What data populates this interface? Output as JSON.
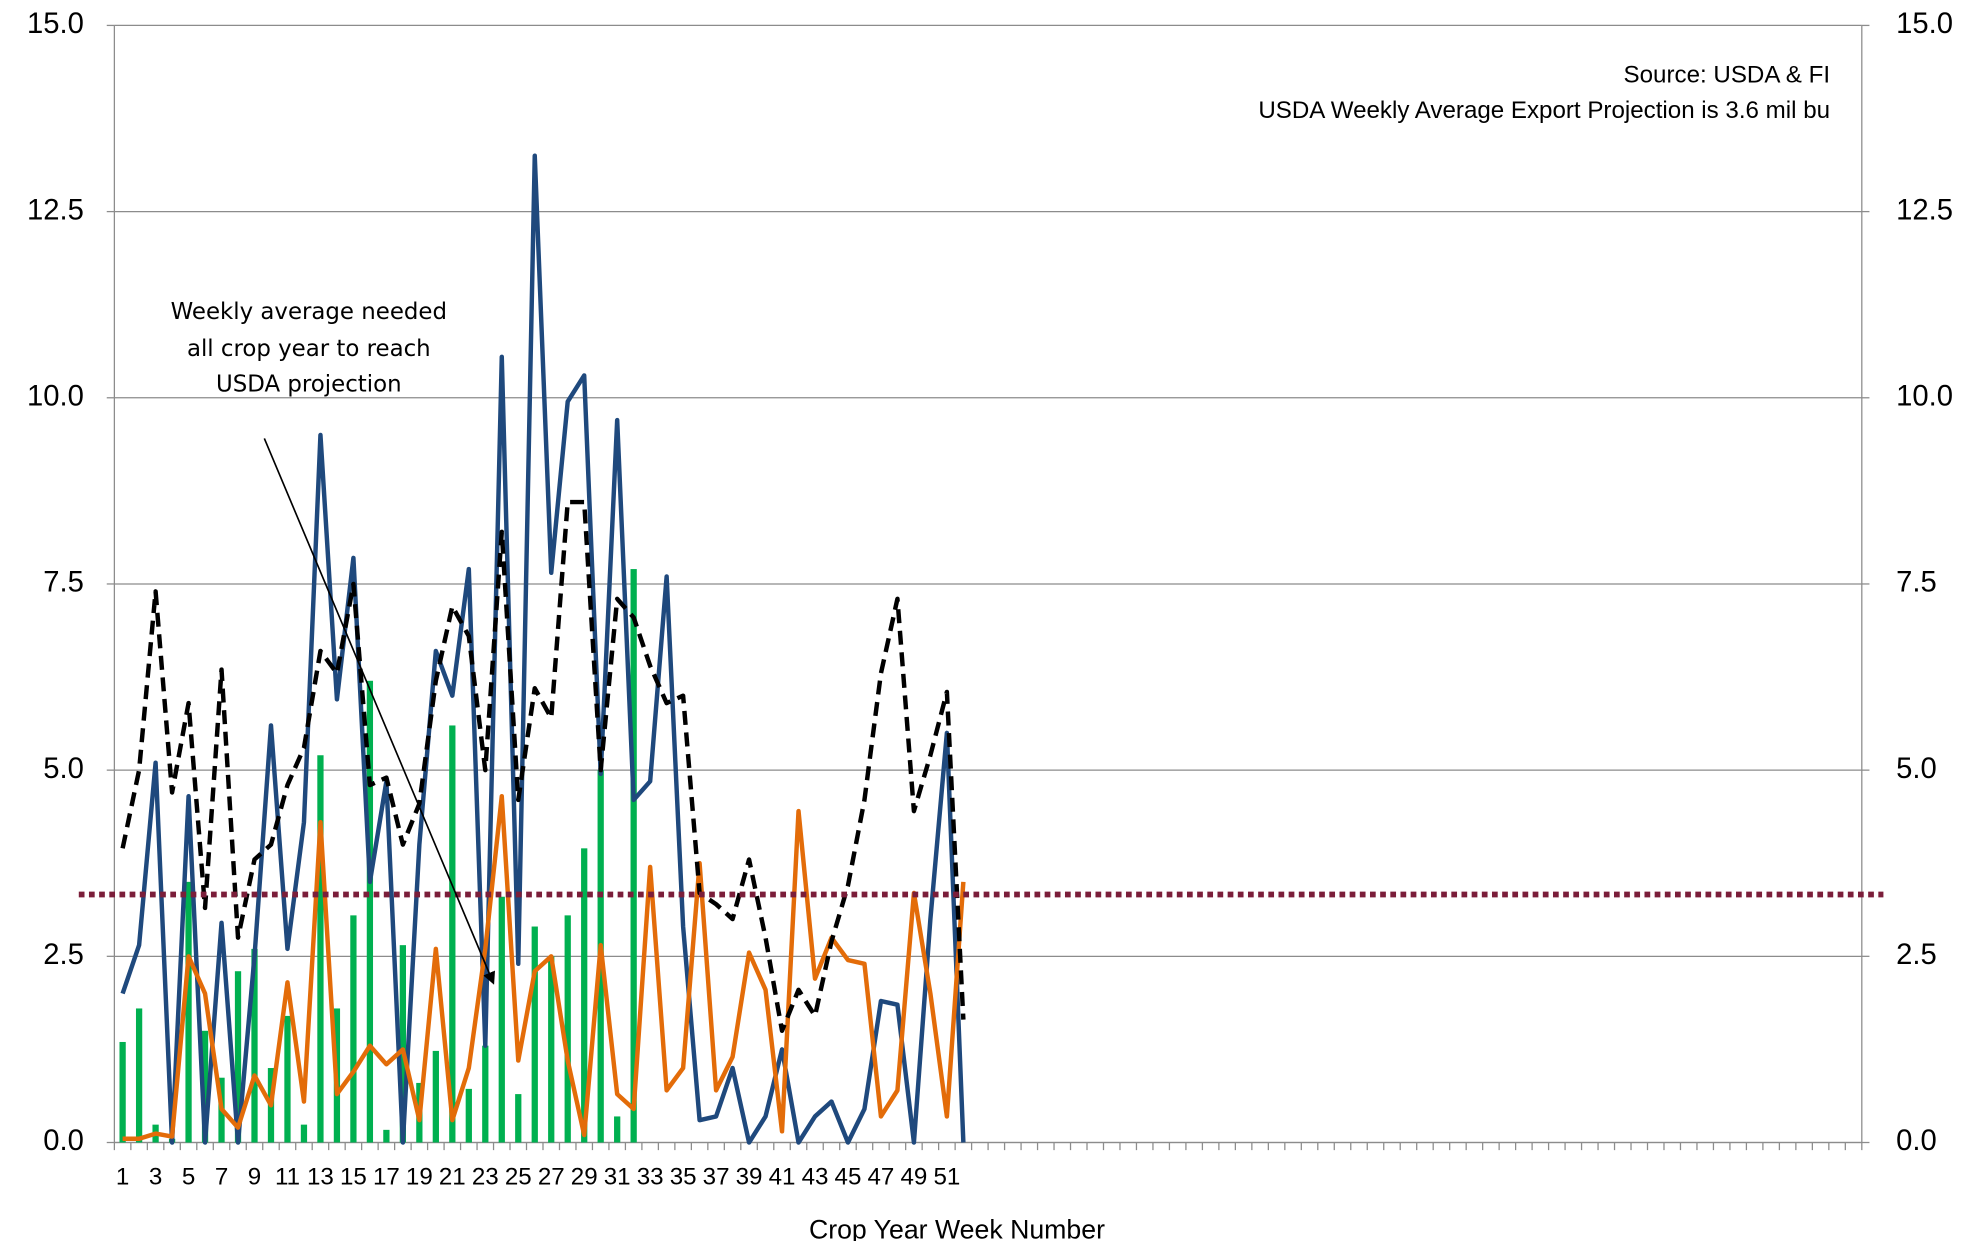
{
  "chart_data": {
    "type": "bar",
    "source": "Source: USDA & FI",
    "subtitle": "USDA Weekly Average Export Projection is 3.6 mil bu",
    "annotation": [
      "Weekly average needed",
      "all crop year to reach",
      "USDA projection"
    ],
    "x_label": "Crop Year Week Number",
    "categories": [
      "1",
      null,
      "3",
      null,
      "5",
      null,
      "7",
      null,
      "9",
      null,
      "11",
      null,
      "13",
      null,
      "15",
      null,
      "17",
      null,
      "19",
      null,
      "21",
      null,
      "23",
      null,
      "25",
      null,
      "27",
      null,
      "29",
      null,
      "31",
      null,
      "33",
      null,
      "35",
      null,
      "37",
      null,
      "39",
      null,
      "41",
      null,
      "43",
      null,
      "45",
      null,
      "47",
      null,
      "49",
      null,
      "51",
      null,
      null,
      null,
      null,
      null,
      null,
      null,
      null,
      null,
      null,
      null,
      null,
      null,
      null,
      null,
      null,
      null,
      null,
      null,
      null,
      null,
      null,
      null,
      null,
      null,
      null,
      null,
      null,
      null,
      null,
      null,
      null,
      null,
      null,
      null,
      null,
      null,
      null,
      null,
      null,
      null,
      null,
      null,
      null,
      null,
      null,
      null,
      null,
      null,
      null,
      null,
      null,
      null,
      null,
      null
    ],
    "series": [
      {
        "type": "bar",
        "color": "#00b050",
        "values": [
          1.35,
          1.8,
          0.24,
          0.05,
          3.5,
          1.5,
          0.87,
          2.3,
          2.6,
          1.0,
          1.7,
          0.24,
          5.2,
          1.8,
          3.05,
          6.2,
          0.17,
          2.65,
          0.8,
          1.23,
          5.6,
          0.72,
          1.3,
          3.3,
          0.65,
          2.9,
          2.5,
          3.05,
          3.95,
          5.0,
          0.35,
          7.7,
          null,
          null,
          null,
          null,
          null,
          null,
          null,
          null,
          null,
          null,
          null,
          null,
          null,
          null,
          null,
          null,
          null,
          null,
          null,
          null,
          null,
          null,
          null,
          null,
          null,
          null,
          null,
          null,
          null,
          null,
          null,
          null,
          null,
          null,
          null,
          null,
          null,
          null,
          null,
          null,
          null,
          null,
          null,
          null,
          null,
          null,
          null,
          null,
          null,
          null,
          null,
          null,
          null,
          null,
          null,
          null,
          null,
          null,
          null,
          null,
          null,
          null,
          null,
          null,
          null,
          null,
          null,
          null,
          null,
          null,
          null,
          null,
          null,
          null
        ]
      },
      {
        "type": "line",
        "color": "#1f497d",
        "values": [
          2.0,
          2.65,
          5.1,
          0.0,
          4.65,
          0.0,
          2.95,
          0.0,
          2.5,
          5.6,
          2.6,
          4.3,
          9.5,
          5.95,
          7.85,
          3.5,
          4.85,
          0.0,
          4.0,
          6.6,
          6.0,
          7.7,
          1.3,
          10.55,
          2.4,
          13.25,
          7.65,
          9.95,
          10.3,
          4.95,
          9.7,
          4.6,
          4.85,
          7.6,
          2.9,
          0.3,
          0.35,
          1.0,
          0.0,
          0.35,
          1.25,
          0.0,
          0.35,
          0.55,
          0.0,
          0.45,
          1.9,
          1.85,
          0.0,
          3.0,
          5.5,
          0.0,
          null,
          null,
          null,
          null,
          null,
          null,
          null,
          null,
          null,
          null,
          null,
          null,
          null,
          null,
          null,
          null,
          null,
          null,
          null,
          null,
          null,
          null,
          null,
          null,
          null,
          null,
          null,
          null,
          null,
          null,
          null,
          null,
          null,
          null,
          null,
          null,
          null,
          null,
          null,
          null,
          null,
          null,
          null,
          null,
          null,
          null,
          null,
          null,
          null,
          null,
          null,
          null,
          null,
          null
        ]
      },
      {
        "type": "line",
        "color": "#e36c09",
        "values": [
          0.05,
          0.05,
          0.12,
          0.08,
          2.5,
          2.0,
          0.45,
          0.2,
          0.9,
          0.5,
          2.15,
          0.55,
          4.3,
          0.65,
          0.95,
          1.3,
          1.05,
          1.25,
          0.3,
          2.6,
          0.3,
          1.0,
          2.6,
          4.65,
          1.1,
          2.3,
          2.5,
          1.1,
          0.1,
          2.65,
          0.65,
          0.45,
          3.7,
          0.7,
          1.0,
          3.75,
          0.7,
          1.15,
          2.55,
          2.05,
          0.15,
          4.45,
          2.2,
          2.75,
          2.45,
          2.4,
          0.35,
          0.7,
          3.35,
          2.0,
          0.35,
          3.5,
          null,
          null,
          null,
          null,
          null,
          null,
          null,
          null,
          null,
          null,
          null,
          null,
          null,
          null,
          null,
          null,
          null,
          null,
          null,
          null,
          null,
          null,
          null,
          null,
          null,
          null,
          null,
          null,
          null,
          null,
          null,
          null,
          null,
          null,
          null,
          null,
          null,
          null,
          null,
          null,
          null,
          null,
          null,
          null,
          null,
          null,
          null,
          null,
          null,
          null,
          null,
          null,
          null,
          null
        ]
      },
      {
        "type": "line",
        "color": "#000000",
        "dash": "dashed",
        "values": [
          3.95,
          5.0,
          7.4,
          4.7,
          5.9,
          3.15,
          6.35,
          2.75,
          3.8,
          4.0,
          4.8,
          5.3,
          6.6,
          6.3,
          7.5,
          4.8,
          4.9,
          4.0,
          4.55,
          6.2,
          7.2,
          6.8,
          5.0,
          8.2,
          4.6,
          6.1,
          5.7,
          8.6,
          8.6,
          5.0,
          7.3,
          7.05,
          6.4,
          5.9,
          6.0,
          3.35,
          3.2,
          3.0,
          3.8,
          2.75,
          1.5,
          2.05,
          1.7,
          2.7,
          3.45,
          4.6,
          6.3,
          7.3,
          4.45,
          5.2,
          6.05,
          1.65,
          null,
          null,
          null,
          null,
          null,
          null,
          null,
          null,
          null,
          null,
          null,
          null,
          null,
          null,
          null,
          null,
          null,
          null,
          null,
          null,
          null,
          null,
          null,
          null,
          null,
          null,
          null,
          null,
          null,
          null,
          null,
          null,
          null,
          null,
          null,
          null,
          null,
          null,
          null,
          null,
          null,
          null,
          null,
          null,
          null,
          null,
          null,
          null,
          null,
          null,
          null,
          null,
          null,
          null
        ]
      }
    ],
    "reference_lines": [
      {
        "value": 3.33,
        "color": "#7b1e3a",
        "style": "dotted"
      }
    ],
    "ylim": [
      0,
      15
    ],
    "yticks": [
      {
        "value": 0,
        "label": "0.0"
      },
      2.5,
      {
        "value": 5,
        "label": "5.0"
      },
      7.5,
      {
        "value": 10,
        "label": "10.0"
      },
      12.5,
      {
        "value": 15,
        "label": "15.0"
      }
    ],
    "y2lim": [
      0,
      15
    ],
    "y2ticks": [
      {
        "value": 0,
        "label": "0.0"
      },
      2.5,
      {
        "value": 5,
        "label": "5.0"
      },
      7.5,
      {
        "value": 10,
        "label": "10.0"
      },
      12.5,
      {
        "value": 15,
        "label": "15.0"
      }
    ],
    "grid": true
  }
}
